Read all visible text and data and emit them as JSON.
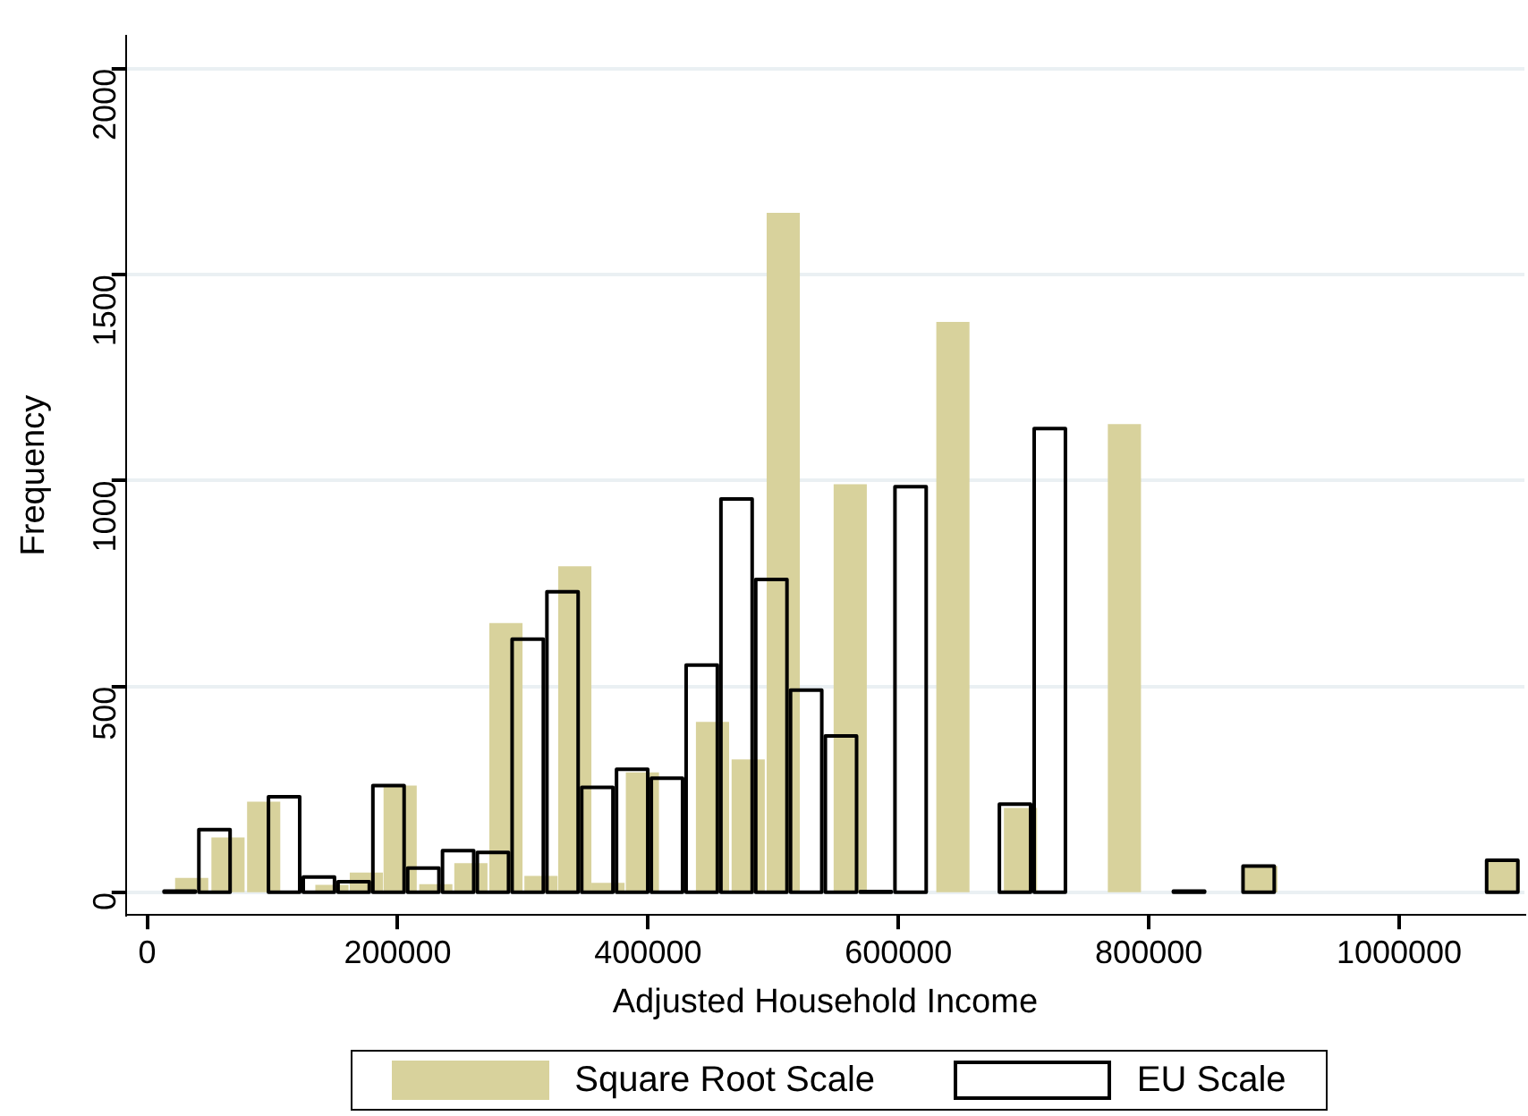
{
  "chart_data": {
    "type": "bar",
    "xlabel": "Adjusted Household Income",
    "ylabel": "Frequency",
    "xlim": [
      -17000,
      1100000
    ],
    "ylim": [
      -55,
      2080
    ],
    "xticks": [
      0,
      200000,
      400000,
      600000,
      800000,
      1000000
    ],
    "yticks": [
      0,
      500,
      1000,
      1500,
      2000
    ],
    "grid": "y",
    "legend": "bottom",
    "series": [
      {
        "name": "Square Root Scale",
        "color": "#d8d29c",
        "x": [
          35500,
          64500,
          93000,
          147500,
          175000,
          202000,
          230500,
          258500,
          286500,
          314500,
          341500,
          368000,
          395500,
          423500,
          451500,
          480000,
          508000,
          561500,
          643500,
          697500,
          780500,
          889500,
          1083000
        ],
        "values": [
          35,
          133,
          220,
          18,
          48,
          259,
          20,
          71,
          654,
          40,
          792,
          23,
          291,
          null,
          414,
          323,
          1650,
          991,
          1385,
          205,
          1137,
          64,
          78
        ]
      },
      {
        "name": "EU Scale",
        "color": "#000000",
        "x": [
          25900,
          53700,
          109300,
          137100,
          164900,
          192700,
          220500,
          248300,
          276100,
          303900,
          331700,
          359500,
          387300,
          415100,
          442900,
          470700,
          498500,
          526300,
          554100,
          581900,
          609700,
          693100,
          720900,
          832100,
          887700,
          1082300
        ],
        "values": [
          3,
          152,
          232,
          37,
          26,
          259,
          59,
          101,
          97,
          615,
          730,
          255,
          299,
          277,
          552,
          955,
          760,
          491,
          380,
          2,
          985,
          214,
          1126,
          3,
          64,
          78
        ]
      }
    ]
  }
}
